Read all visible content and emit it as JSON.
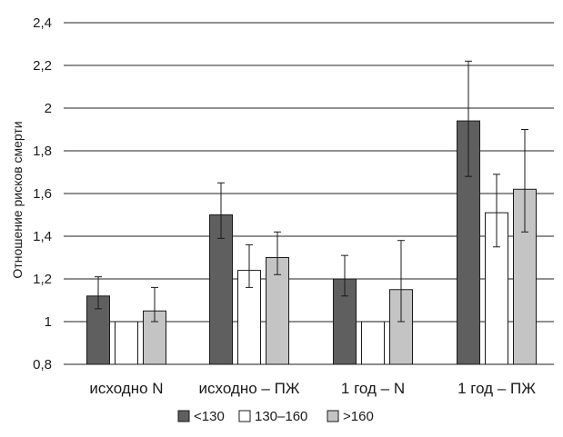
{
  "chart_data": {
    "type": "bar",
    "ylabel": "Отношение рисков смерти",
    "xlabel": "",
    "ylim": [
      0.8,
      2.4
    ],
    "yticks": [
      "0,8",
      "1",
      "1,2",
      "1,4",
      "1,6",
      "1,8",
      "2",
      "2,2",
      "2,4"
    ],
    "ytick_values": [
      0.8,
      1.0,
      1.2,
      1.4,
      1.6,
      1.8,
      2.0,
      2.2,
      2.4
    ],
    "grid": true,
    "legend_position": "bottom",
    "categories": [
      "исходно N",
      "исходно – ПЖ",
      "1 год – N",
      "1 год – ПЖ"
    ],
    "series": [
      {
        "name": "<130",
        "color": "#5f5f5f",
        "values": [
          1.12,
          1.5,
          1.2,
          1.94
        ],
        "err_low": [
          1.06,
          1.39,
          1.12,
          1.68
        ],
        "err_high": [
          1.21,
          1.65,
          1.31,
          2.22
        ]
      },
      {
        "name": "130–160",
        "color": "#ffffff",
        "values": [
          1.0,
          1.24,
          1.0,
          1.51
        ],
        "err_low": [
          1.0,
          1.16,
          1.0,
          1.35
        ],
        "err_high": [
          1.0,
          1.36,
          1.0,
          1.69
        ]
      },
      {
        "name": ">160",
        "color": "#c4c4c4",
        "values": [
          1.05,
          1.3,
          1.15,
          1.62
        ],
        "err_low": [
          1.0,
          1.22,
          1.0,
          1.42
        ],
        "err_high": [
          1.16,
          1.42,
          1.38,
          1.9
        ]
      }
    ]
  }
}
